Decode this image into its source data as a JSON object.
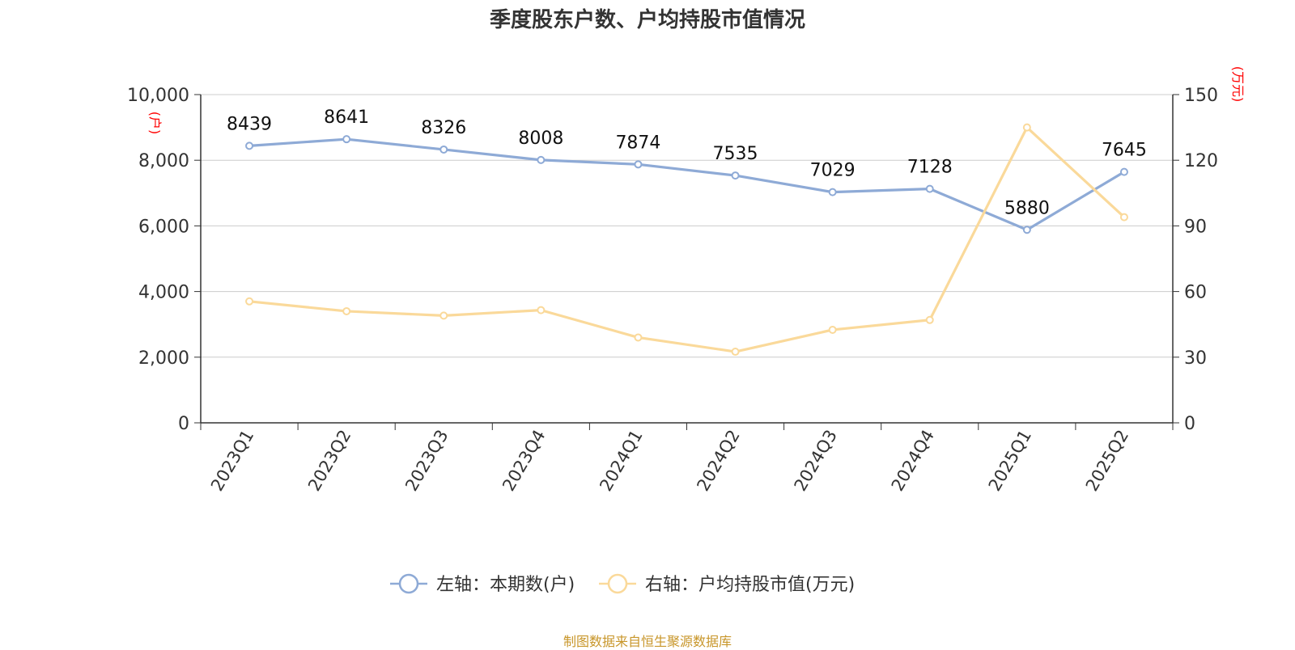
{
  "chart_data": {
    "type": "line",
    "title": "季度股东户数、户均持股市值情况",
    "categories": [
      "2023Q1",
      "2023Q2",
      "2023Q3",
      "2023Q4",
      "2024Q1",
      "2024Q2",
      "2024Q3",
      "2024Q4",
      "2025Q1",
      "2025Q2"
    ],
    "left_axis": {
      "unit": "(户)",
      "ylim": [
        0,
        10000
      ],
      "ticks": [
        "0",
        "2,000",
        "4,000",
        "6,000",
        "8,000",
        "10,000"
      ],
      "tick_values": [
        0,
        2000,
        4000,
        6000,
        8000,
        10000
      ]
    },
    "right_axis": {
      "unit": "(万元)",
      "ylim": [
        0,
        150
      ],
      "ticks": [
        "0",
        "30",
        "60",
        "90",
        "120",
        "150"
      ],
      "tick_values": [
        0,
        30,
        60,
        90,
        120,
        150
      ]
    },
    "series": [
      {
        "name": "左轴：本期数(户)",
        "axis": "left",
        "color": "#8eaad6",
        "values": [
          8439,
          8641,
          8326,
          8008,
          7874,
          7535,
          7029,
          7128,
          5880,
          7645
        ],
        "labels": [
          "8439",
          "8641",
          "8326",
          "8008",
          "7874",
          "7535",
          "7029",
          "7128",
          "5880",
          "7645"
        ]
      },
      {
        "name": "右轴：户均持股市值(万元)",
        "axis": "right",
        "color": "#fad99a",
        "values": [
          55.5,
          51,
          49,
          51.5,
          39,
          32.5,
          42.5,
          47,
          135,
          94
        ]
      }
    ],
    "grid": true,
    "legend_position": "bottom"
  },
  "footer": {
    "source": "制图数据来自恒生聚源数据库"
  }
}
